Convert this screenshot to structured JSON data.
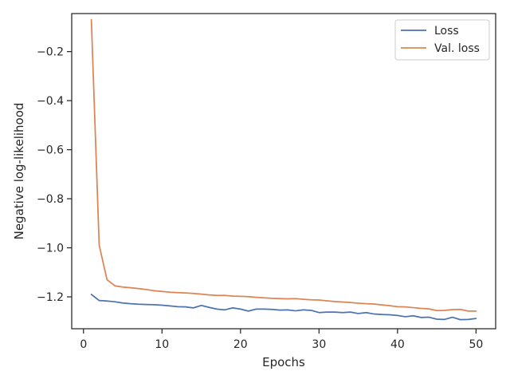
{
  "chart_data": {
    "type": "line",
    "xlabel": "Epochs",
    "ylabel": "Negative log-likelihood",
    "xlim": [
      -1.5,
      52.5
    ],
    "ylim": [
      -1.33,
      -0.045
    ],
    "xticks": [
      0,
      10,
      20,
      30,
      40,
      50
    ],
    "xtick_labels": [
      "0",
      "10",
      "20",
      "30",
      "40",
      "50"
    ],
    "yticks": [
      -0.2,
      -0.4,
      -0.6,
      -0.8,
      -1.0,
      -1.2
    ],
    "ytick_labels": [
      "−0.2",
      "−0.4",
      "−0.6",
      "−0.8",
      "−1.0",
      "−1.2"
    ],
    "grid": false,
    "legend_position": "top-right",
    "x": [
      1,
      2,
      3,
      4,
      5,
      6,
      7,
      8,
      9,
      10,
      11,
      12,
      13,
      14,
      15,
      16,
      17,
      18,
      19,
      20,
      21,
      22,
      23,
      24,
      25,
      26,
      27,
      28,
      29,
      30,
      31,
      32,
      33,
      34,
      35,
      36,
      37,
      38,
      39,
      40,
      41,
      42,
      43,
      44,
      45,
      46,
      47,
      48,
      49,
      50
    ],
    "series": [
      {
        "name": "Loss",
        "color": "#4c72b0",
        "values": [
          -1.19,
          -1.215,
          -1.217,
          -1.22,
          -1.225,
          -1.228,
          -1.23,
          -1.231,
          -1.232,
          -1.234,
          -1.237,
          -1.24,
          -1.241,
          -1.245,
          -1.235,
          -1.243,
          -1.25,
          -1.253,
          -1.245,
          -1.25,
          -1.258,
          -1.25,
          -1.25,
          -1.251,
          -1.254,
          -1.253,
          -1.257,
          -1.253,
          -1.255,
          -1.264,
          -1.262,
          -1.262,
          -1.264,
          -1.262,
          -1.268,
          -1.264,
          -1.27,
          -1.272,
          -1.273,
          -1.276,
          -1.281,
          -1.277,
          -1.284,
          -1.283,
          -1.291,
          -1.292,
          -1.283,
          -1.293,
          -1.292,
          -1.288
        ]
      },
      {
        "name": "Val. loss",
        "color": "#dd8452",
        "values": [
          -0.07,
          -0.99,
          -1.13,
          -1.155,
          -1.16,
          -1.163,
          -1.166,
          -1.17,
          -1.175,
          -1.178,
          -1.181,
          -1.183,
          -1.184,
          -1.186,
          -1.189,
          -1.192,
          -1.194,
          -1.194,
          -1.197,
          -1.198,
          -1.199,
          -1.202,
          -1.204,
          -1.206,
          -1.207,
          -1.208,
          -1.207,
          -1.21,
          -1.212,
          -1.213,
          -1.216,
          -1.219,
          -1.221,
          -1.223,
          -1.226,
          -1.228,
          -1.229,
          -1.233,
          -1.236,
          -1.24,
          -1.241,
          -1.244,
          -1.247,
          -1.249,
          -1.256,
          -1.255,
          -1.252,
          -1.251,
          -1.258,
          -1.258
        ]
      }
    ]
  }
}
